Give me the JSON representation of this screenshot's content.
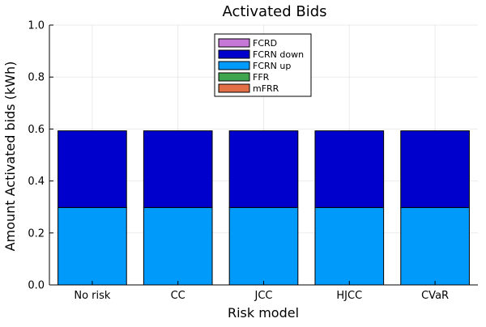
{
  "chart_data": {
    "type": "bar",
    "stacked": true,
    "title": "Activated Bids",
    "xlabel": "Risk model",
    "ylabel": "Amount Activated bids (kWh)",
    "ylim": [
      0,
      1.0
    ],
    "yticks": [
      "0.0",
      "0.2",
      "0.4",
      "0.6",
      "0.8",
      "1.0"
    ],
    "ytick_values": [
      0,
      0.2,
      0.4,
      0.6,
      0.8,
      1.0
    ],
    "grid": true,
    "legend_position": "top-center",
    "categories": [
      "No risk",
      "CC",
      "JCC",
      "HJCC",
      "CVaR"
    ],
    "series": [
      {
        "name": "FCRD",
        "color": "#C678D6",
        "values": [
          0,
          0,
          0,
          0,
          0
        ]
      },
      {
        "name": "FCRN down",
        "color": "#0000CD",
        "values": [
          0.295,
          0.295,
          0.295,
          0.295,
          0.295
        ]
      },
      {
        "name": "FCRN up",
        "color": "#009AFA",
        "values": [
          0.298,
          0.298,
          0.298,
          0.298,
          0.298
        ]
      },
      {
        "name": "FFR",
        "color": "#3EA44E",
        "values": [
          0,
          0,
          0,
          0,
          0
        ]
      },
      {
        "name": "mFRR",
        "color": "#E26F46",
        "values": [
          0,
          0,
          0,
          0,
          0
        ]
      }
    ],
    "stack_order": [
      "FCRN up",
      "FCRN down",
      "FCRD",
      "FFR",
      "mFRR"
    ]
  }
}
